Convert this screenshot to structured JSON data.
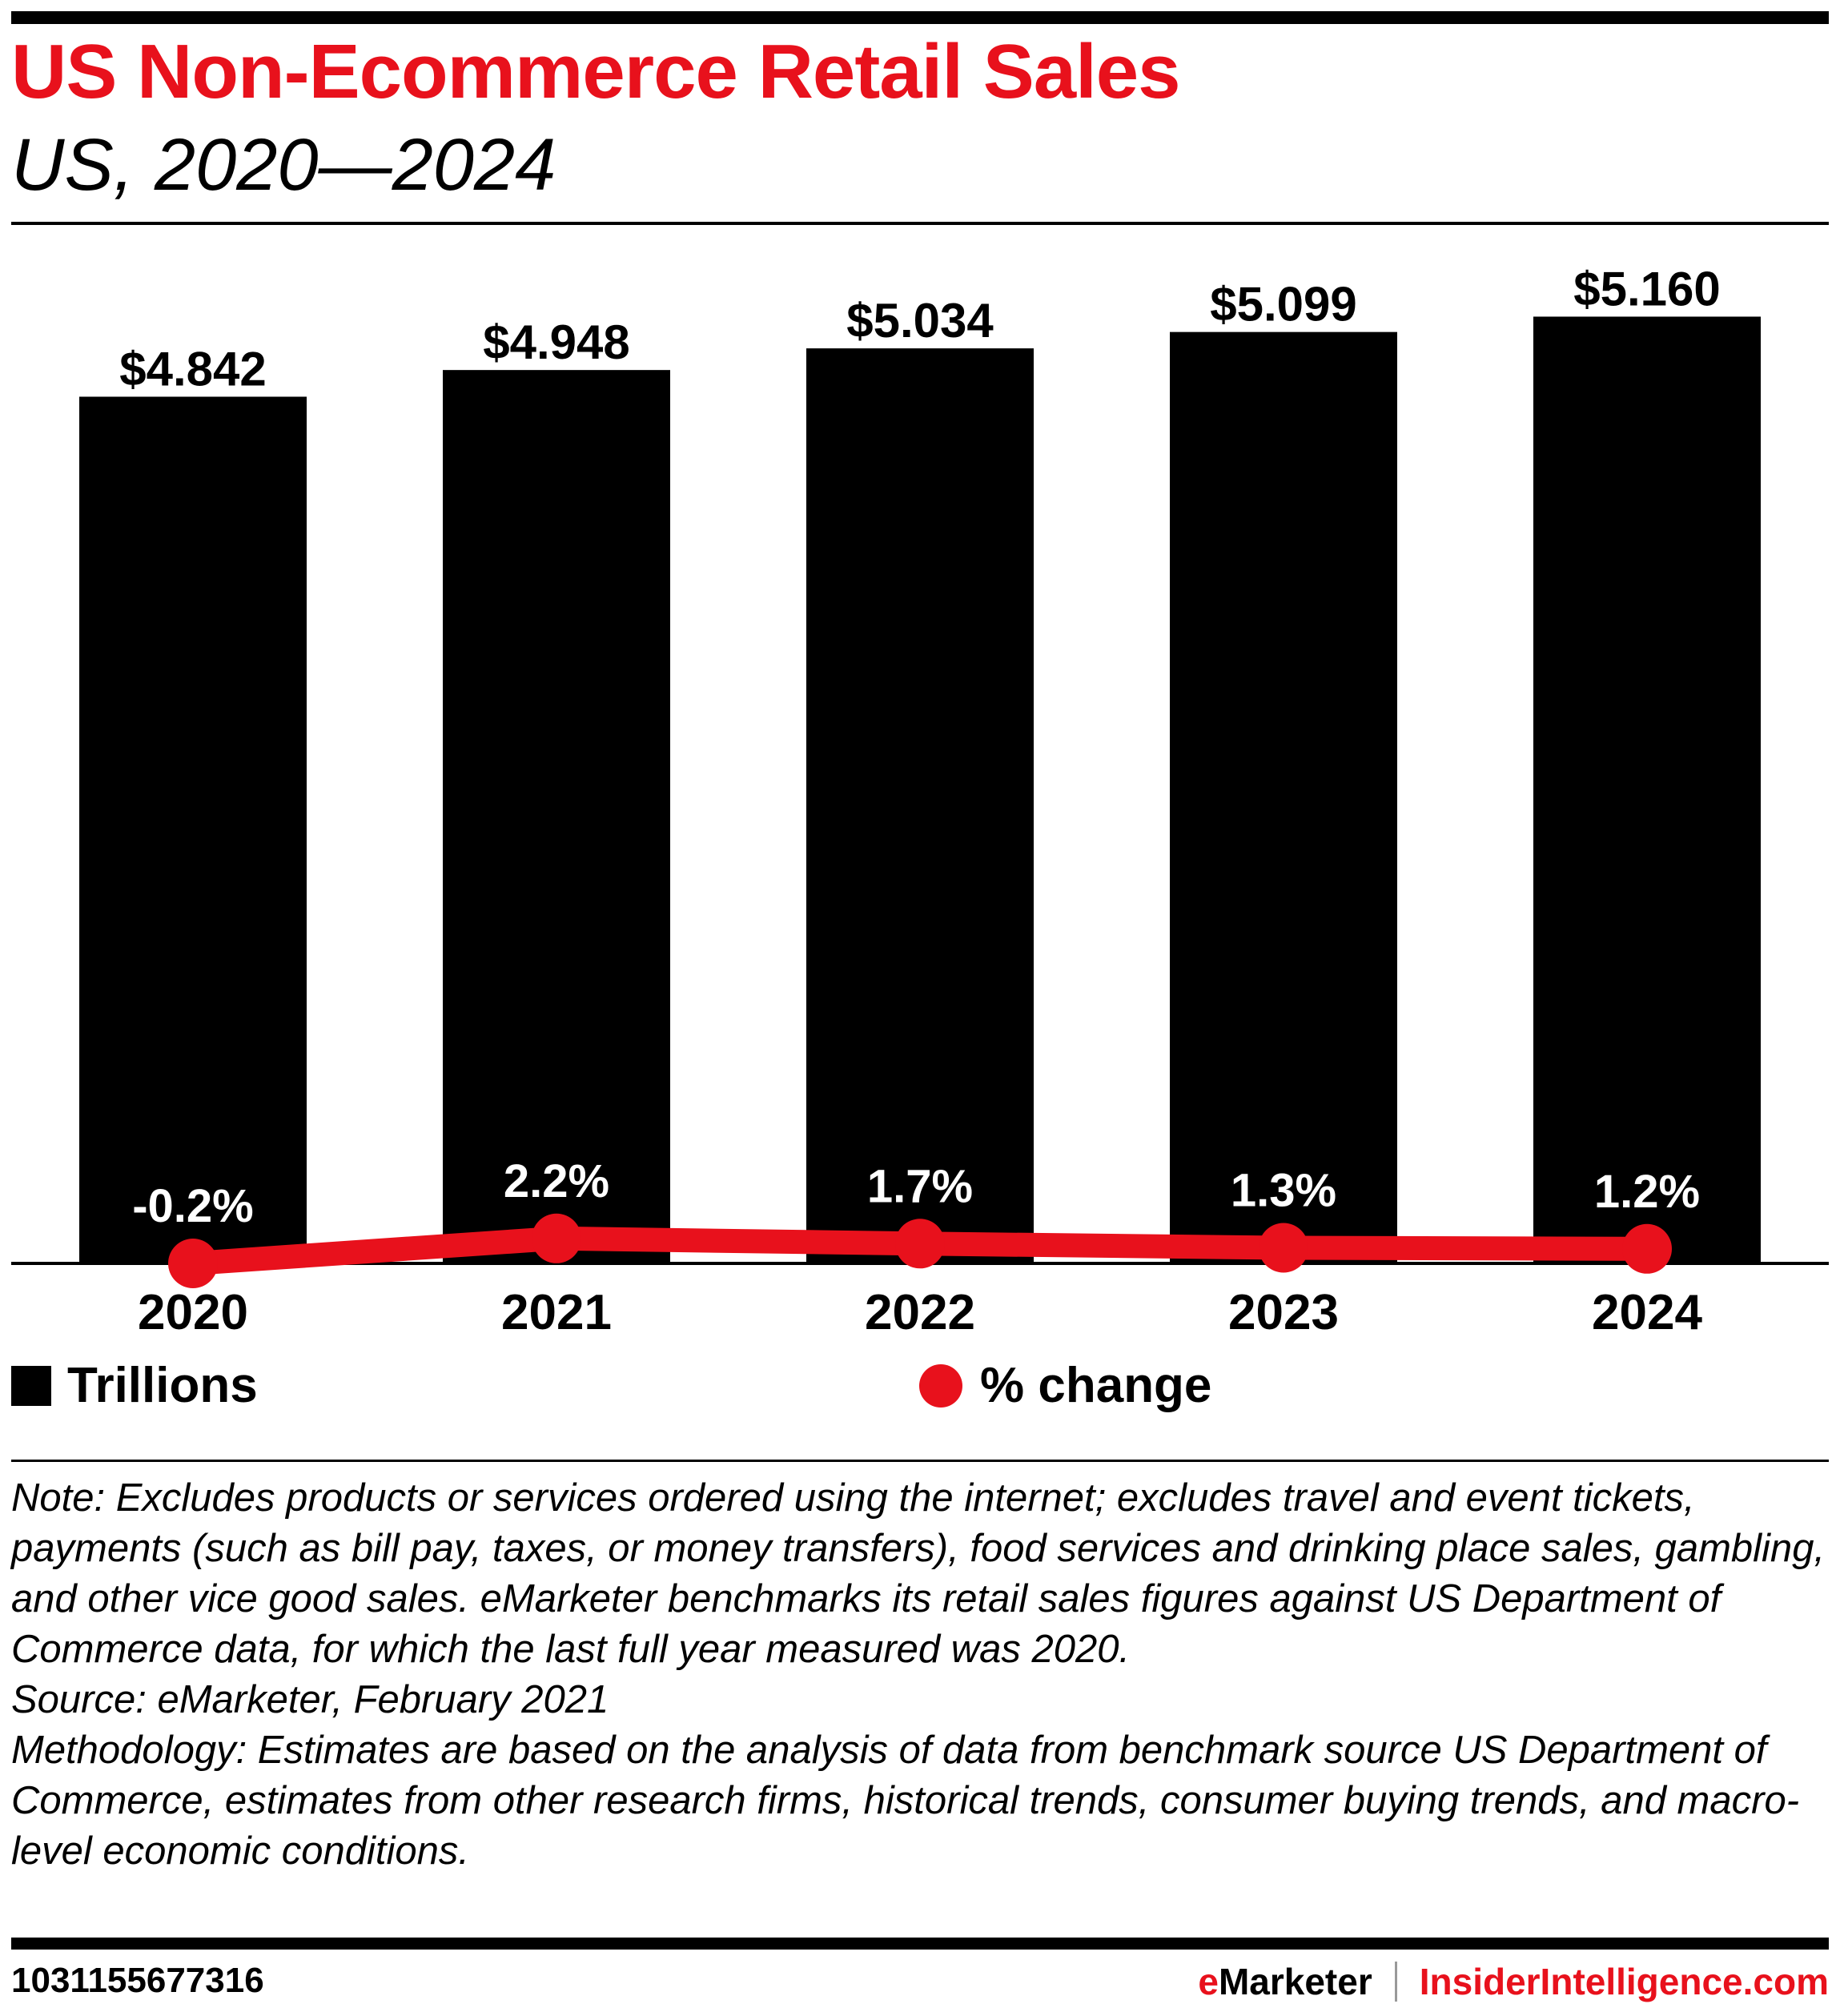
{
  "header": {
    "title": "US Non-Ecommerce Retail Sales",
    "subtitle": "US, 2020—2024"
  },
  "colors": {
    "accent": "#e8111c",
    "bars": "#000000",
    "text_on_bar": "#ffffff"
  },
  "chart_data": {
    "type": "bar",
    "title": "US Non-Ecommerce Retail Sales",
    "subtitle": "US, 2020—2024",
    "categories": [
      "2020",
      "2021",
      "2022",
      "2023",
      "2024"
    ],
    "series": [
      {
        "name": "Trillions",
        "type": "bar",
        "values": [
          4.842,
          4.948,
          5.034,
          5.099,
          5.16
        ],
        "labels": [
          "$4.842",
          "$4.948",
          "$5.034",
          "$5.099",
          "$5.160"
        ],
        "color": "#000000"
      },
      {
        "name": "% change",
        "type": "line",
        "values": [
          -0.2,
          2.2,
          1.7,
          1.3,
          1.2
        ],
        "labels": [
          "-0.2%",
          "2.2%",
          "1.7%",
          "1.3%",
          "1.2%"
        ],
        "color": "#e8111c"
      }
    ],
    "xlabel": "",
    "ylabel": "",
    "ylim": [
      1.4,
      5.3
    ],
    "y2lim": [
      -0.2,
      30
    ],
    "grid": false,
    "legend": "bottom"
  },
  "legend": {
    "bars_label": "Trillions",
    "line_label": "% change"
  },
  "notes": {
    "note": "Note: Excludes products or services ordered using the internet; excludes travel and event tickets, payments (such as bill pay, taxes, or money transfers), food services and drinking place sales, gambling, and other vice good sales. eMarketer benchmarks its retail sales figures against US Department of Commerce data, for which the last full year measured was 2020.",
    "source": "Source: eMarketer, February 2021",
    "methodology": "Methodology: Estimates are based on the analysis of data from benchmark source US Department of Commerce, estimates from other research firms, historical trends, consumer buying trends, and macro-level economic conditions."
  },
  "footer": {
    "chart_id": "1031155677316",
    "brand_e": "e",
    "brand_rest": "Marketer",
    "site": "InsiderIntelligence.com"
  }
}
